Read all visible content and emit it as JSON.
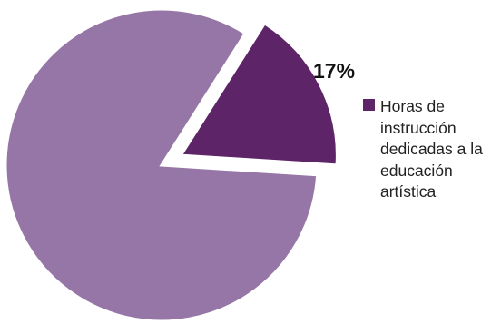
{
  "chart_data": {
    "type": "pie",
    "slices": [
      {
        "label": "",
        "value": 83,
        "color": "#9676a6"
      },
      {
        "label": "Horas de instrucción dedicadas a la educación artística",
        "value": 17,
        "color": "#5e2468",
        "data_label": "17%"
      }
    ],
    "legend": {
      "placement": "right",
      "entries": [
        {
          "label": "Horas de instrucción dedicadas a la educación artística",
          "color": "#5e2468"
        }
      ]
    }
  }
}
